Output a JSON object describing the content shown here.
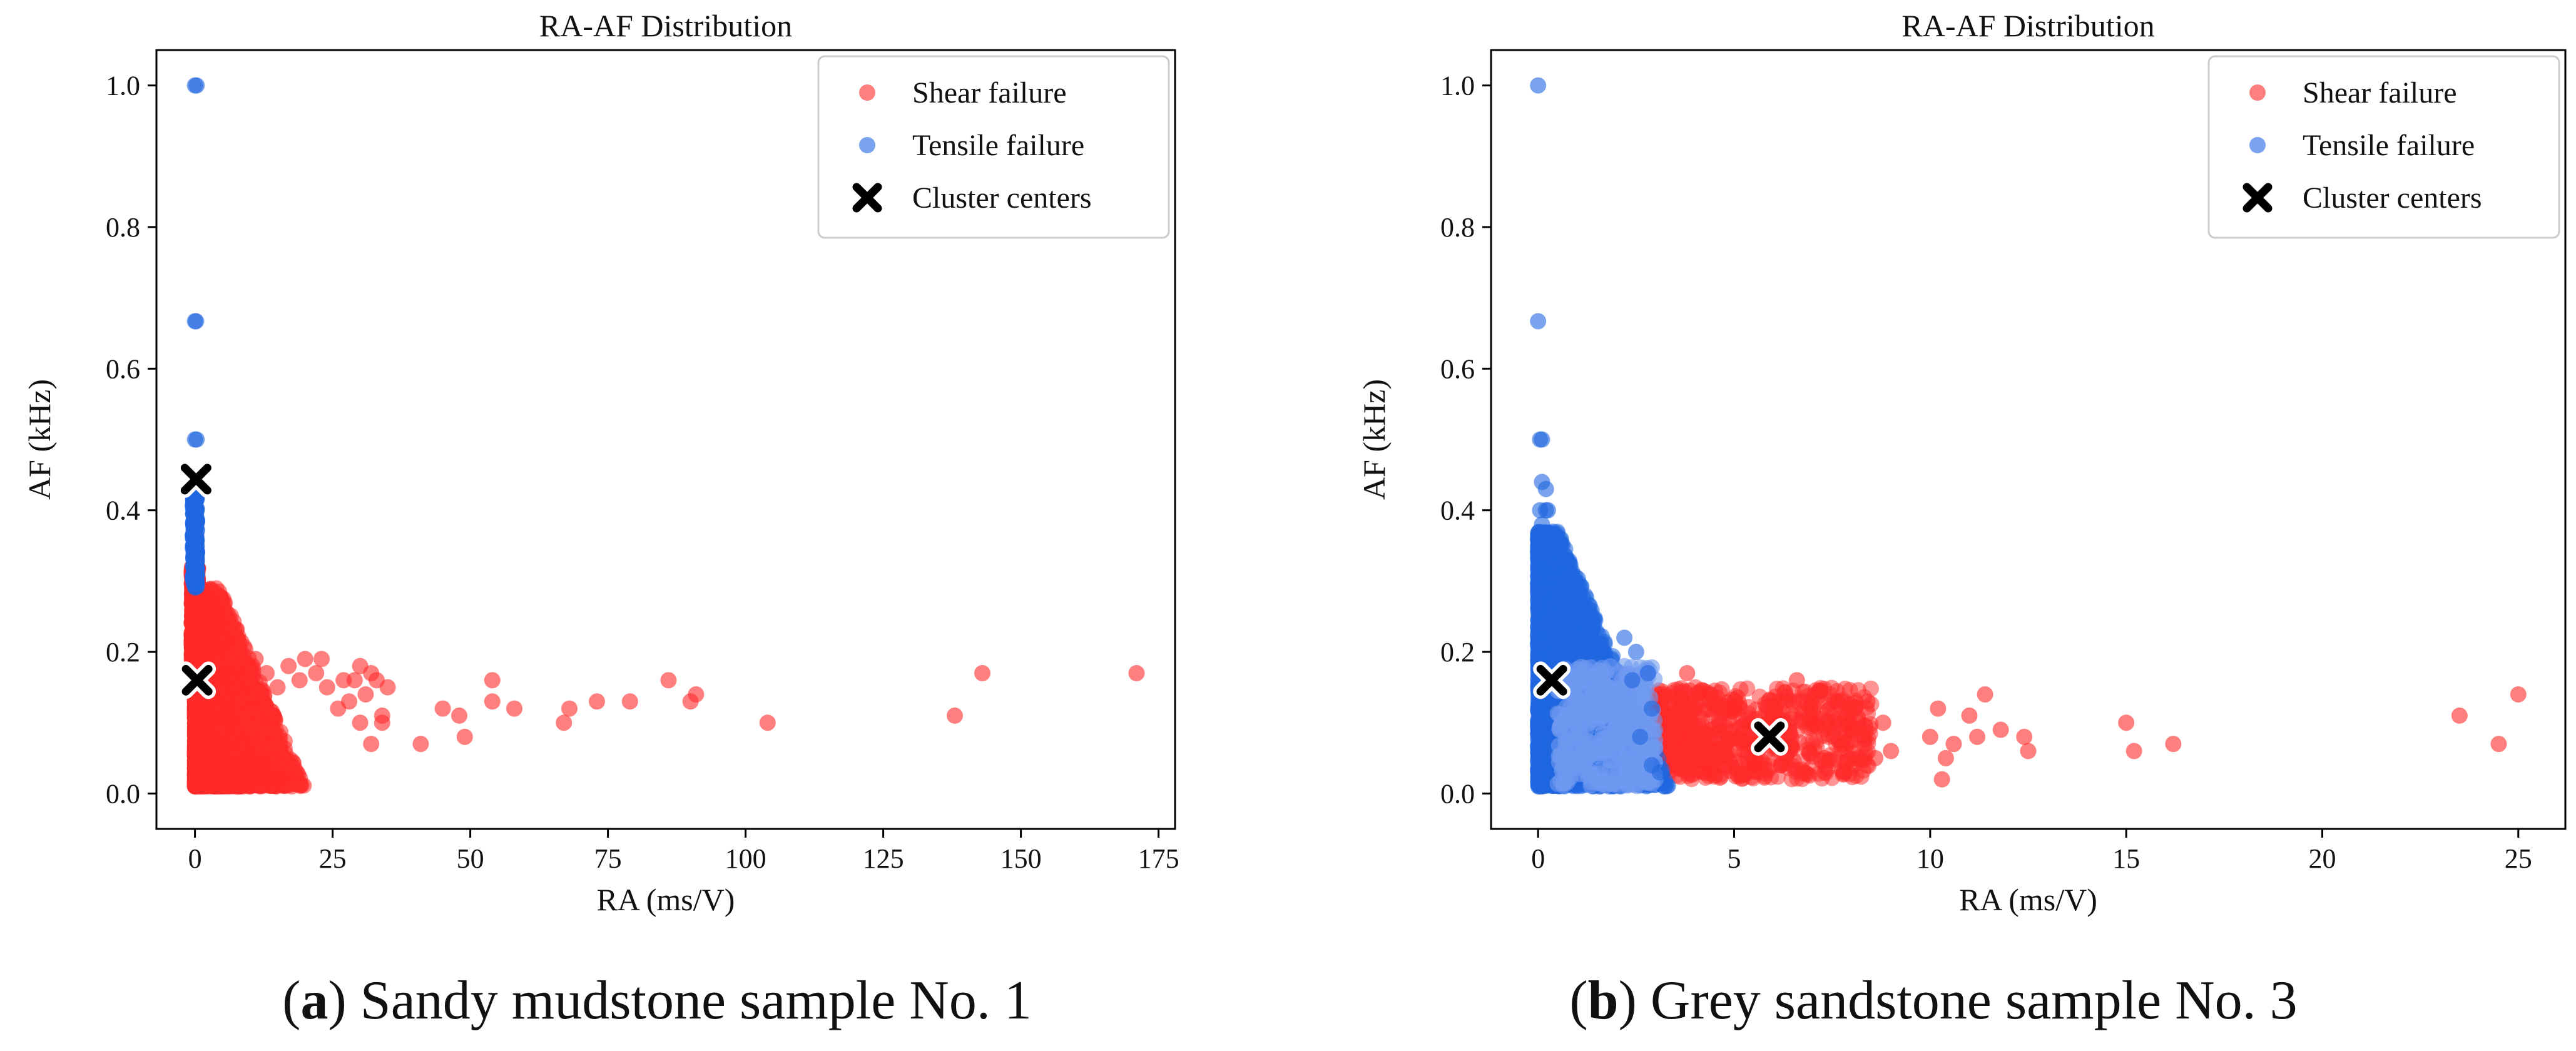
{
  "figure": {
    "panels": [
      {
        "caption": {
          "letter": "a",
          "text": "Sandy mudstone sample No. 1"
        }
      },
      {
        "caption": {
          "letter": "b",
          "text": "Grey sandstone sample No. 3"
        }
      }
    ]
  },
  "colors": {
    "shear": "#ff2a2a",
    "tensile": "#1f66e0",
    "tensile_light": "#6f9af0",
    "center": "#000000"
  },
  "chart_data": [
    {
      "type": "scatter",
      "title": "RA-AF Distribution",
      "xlabel": "RA (ms/V)",
      "ylabel": "AF (kHz)",
      "xlim": [
        -7,
        178
      ],
      "ylim": [
        -0.05,
        1.05
      ],
      "xticks": [
        0,
        25,
        50,
        75,
        100,
        125,
        150,
        175
      ],
      "yticks": [
        0.0,
        0.2,
        0.4,
        0.6,
        0.8,
        1.0
      ],
      "legend": [
        "Shear failure",
        "Tensile failure",
        "Cluster centers"
      ],
      "legend_position": "top-right",
      "series": [
        {
          "name": "Shear failure",
          "color": "#ff2a2a",
          "points": [
            [
              11,
              0.19
            ],
            [
              13,
              0.17
            ],
            [
              15,
              0.15
            ],
            [
              17,
              0.18
            ],
            [
              19,
              0.16
            ],
            [
              20,
              0.19
            ],
            [
              22,
              0.17
            ],
            [
              23,
              0.19
            ],
            [
              24,
              0.15
            ],
            [
              26,
              0.12
            ],
            [
              27,
              0.16
            ],
            [
              28,
              0.13
            ],
            [
              29,
              0.16
            ],
            [
              30,
              0.18
            ],
            [
              30,
              0.1
            ],
            [
              31,
              0.14
            ],
            [
              32,
              0.17
            ],
            [
              33,
              0.16
            ],
            [
              34,
              0.11
            ],
            [
              35,
              0.15
            ],
            [
              32,
              0.07
            ],
            [
              34,
              0.1
            ],
            [
              41,
              0.07
            ],
            [
              45,
              0.12
            ],
            [
              48,
              0.11
            ],
            [
              49,
              0.08
            ],
            [
              54,
              0.16
            ],
            [
              54,
              0.13
            ],
            [
              58,
              0.12
            ],
            [
              67,
              0.1
            ],
            [
              68,
              0.12
            ],
            [
              73,
              0.13
            ],
            [
              79,
              0.13
            ],
            [
              86,
              0.16
            ],
            [
              90,
              0.13
            ],
            [
              91,
              0.14
            ],
            [
              104,
              0.1
            ],
            [
              138,
              0.11
            ],
            [
              143,
              0.17
            ],
            [
              171,
              0.17
            ]
          ]
        },
        {
          "name": "Tensile failure",
          "color": "#1f66e0",
          "points": [
            [
              0,
              1.0
            ],
            [
              0.3,
              1.0
            ],
            [
              0,
              0.667
            ],
            [
              0.2,
              0.667
            ],
            [
              0,
              0.5
            ],
            [
              0.3,
              0.5
            ],
            [
              0.1,
              0.42
            ],
            [
              0.3,
              0.4
            ],
            [
              0.1,
              0.38
            ],
            [
              0.2,
              0.36
            ],
            [
              0.1,
              0.34
            ],
            [
              0.3,
              0.33
            ],
            [
              0.2,
              0.31
            ]
          ]
        },
        {
          "name": "Cluster centers",
          "color": "#000000",
          "points": [
            [
              0.2,
              0.444
            ],
            [
              0.4,
              0.16
            ]
          ]
        }
      ]
    },
    {
      "type": "scatter",
      "title": "RA-AF Distribution",
      "xlabel": "RA (ms/V)",
      "ylabel": "AF (kHz)",
      "xlim": [
        -1.2,
        26.2
      ],
      "ylim": [
        -0.05,
        1.05
      ],
      "xticks": [
        0,
        5,
        10,
        15,
        20,
        25
      ],
      "yticks": [
        0.0,
        0.2,
        0.4,
        0.6,
        0.8,
        1.0
      ],
      "legend": [
        "Shear failure",
        "Tensile failure",
        "Cluster centers"
      ],
      "legend_position": "top-right",
      "series": [
        {
          "name": "Shear failure",
          "color": "#ff2a2a",
          "points": [
            [
              3.8,
              0.17
            ],
            [
              4.4,
              0.14
            ],
            [
              5,
              0.12
            ],
            [
              6.6,
              0.16
            ],
            [
              7,
              0.1
            ],
            [
              7.5,
              0.11
            ],
            [
              8,
              0.09
            ],
            [
              8.4,
              0.13
            ],
            [
              8.8,
              0.1
            ],
            [
              9,
              0.06
            ],
            [
              10.2,
              0.12
            ],
            [
              10,
              0.08
            ],
            [
              10.4,
              0.05
            ],
            [
              10.6,
              0.07
            ],
            [
              10.3,
              0.02
            ],
            [
              11,
              0.11
            ],
            [
              11.4,
              0.14
            ],
            [
              11.2,
              0.08
            ],
            [
              11.8,
              0.09
            ],
            [
              12.4,
              0.08
            ],
            [
              12.5,
              0.06
            ],
            [
              15,
              0.1
            ],
            [
              15.2,
              0.06
            ],
            [
              16.2,
              0.07
            ],
            [
              23.5,
              0.11
            ],
            [
              24.5,
              0.07
            ],
            [
              25,
              0.14
            ],
            [
              6.2,
              0.04
            ],
            [
              6.8,
              0.03
            ],
            [
              7.3,
              0.05
            ],
            [
              7.8,
              0.03
            ],
            [
              8.6,
              0.05
            ],
            [
              5.5,
              0.04
            ],
            [
              4.2,
              0.03
            ]
          ]
        },
        {
          "name": "Tensile failure",
          "color": "#1f66e0",
          "points": [
            [
              0,
              1.0
            ],
            [
              0,
              0.667
            ],
            [
              0.05,
              0.5
            ],
            [
              0.1,
              0.5
            ],
            [
              0.1,
              0.44
            ],
            [
              0.2,
              0.43
            ],
            [
              0.05,
              0.4
            ],
            [
              0.2,
              0.4
            ],
            [
              0.25,
              0.4
            ],
            [
              0.1,
              0.38
            ],
            [
              0.2,
              0.36
            ],
            [
              0.15,
              0.34
            ],
            [
              2.2,
              0.22
            ],
            [
              2.5,
              0.2
            ],
            [
              2.8,
              0.17
            ],
            [
              2.4,
              0.16
            ],
            [
              2.9,
              0.12
            ],
            [
              2.6,
              0.08
            ],
            [
              2.9,
              0.04
            ],
            [
              3.1,
              0.03
            ]
          ]
        },
        {
          "name": "Cluster centers",
          "color": "#000000",
          "points": [
            [
              0.35,
              0.16
            ],
            [
              5.9,
              0.08
            ]
          ]
        }
      ]
    }
  ]
}
